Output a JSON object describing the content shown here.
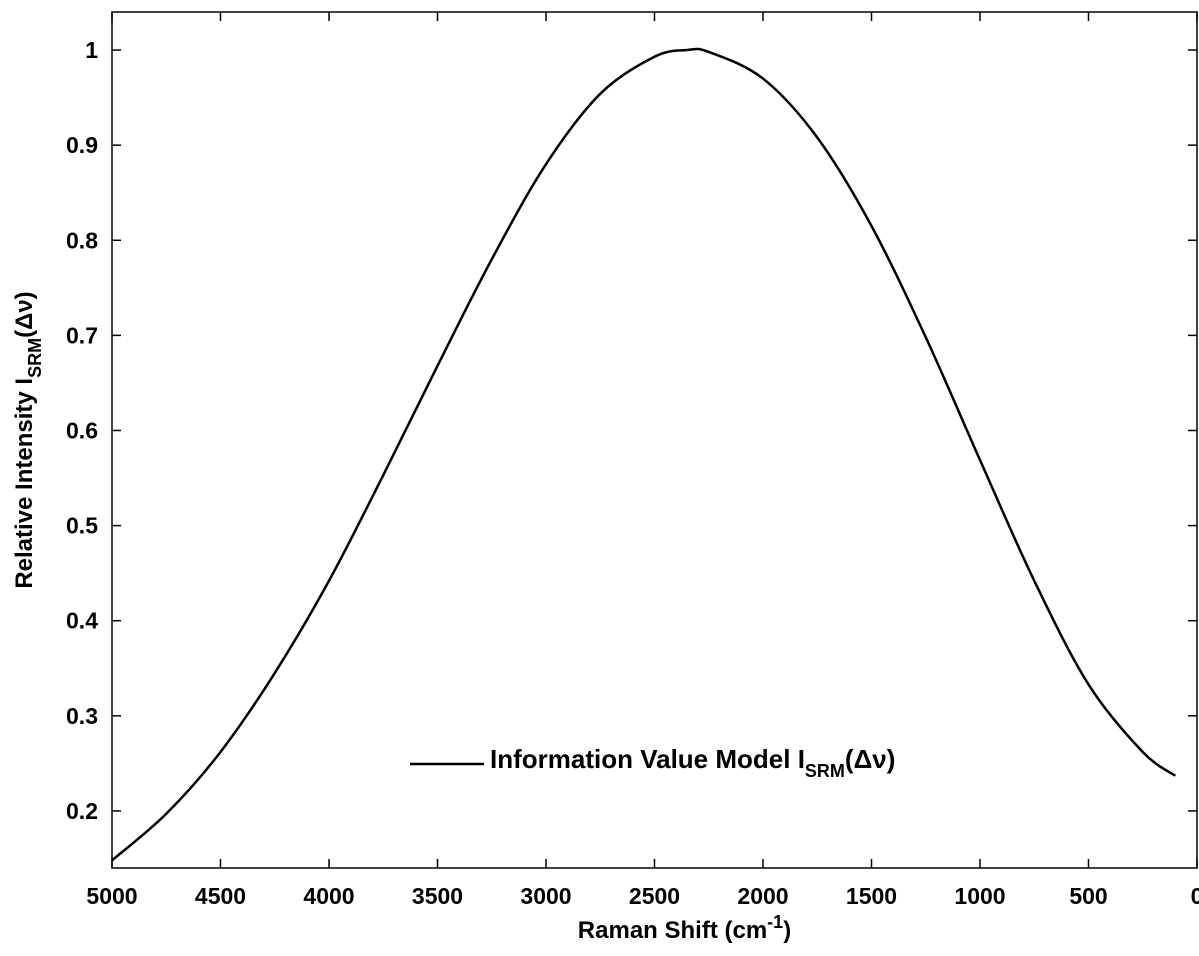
{
  "chart_data": {
    "type": "line",
    "xlabel": {
      "main": "Raman Shift (cm",
      "sup": "-1",
      "close": ")"
    },
    "ylabel": {
      "main": "Relative Intensity I",
      "sub": "SRM",
      "tail": "(Δν)"
    },
    "xlim": [
      5000,
      0
    ],
    "ylim": [
      0.14,
      1.04
    ],
    "x_reversed": true,
    "grid": false,
    "legend_position": "center-bottom",
    "x_ticks": [
      5000,
      4500,
      4000,
      3500,
      3000,
      2500,
      2000,
      1500,
      1000,
      500,
      0
    ],
    "x_tick_labels": [
      "5000",
      "4500",
      "4000",
      "3500",
      "3000",
      "2500",
      "2000",
      "1500",
      "1000",
      "500",
      "0"
    ],
    "y_ticks": [
      0.2,
      0.3,
      0.4,
      0.5,
      0.6,
      0.7,
      0.8,
      0.9,
      1.0
    ],
    "y_tick_labels": [
      "0.2",
      "0.3",
      "0.4",
      "0.5",
      "0.6",
      "0.7",
      "0.8",
      "0.9",
      "1"
    ],
    "series": [
      {
        "name": {
          "main": "Information Value Model I",
          "sub": "SRM",
          "tail": "(Δν)"
        },
        "color": "#000000",
        "x": [
          5000,
          4750,
          4500,
          4250,
          4000,
          3750,
          3500,
          3250,
          3000,
          2750,
          2500,
          2350,
          2250,
          2000,
          1750,
          1500,
          1250,
          1000,
          750,
          500,
          250,
          100
        ],
        "y": [
          0.148,
          0.197,
          0.262,
          0.345,
          0.442,
          0.553,
          0.668,
          0.78,
          0.88,
          0.954,
          0.993,
          1.0,
          0.998,
          0.97,
          0.908,
          0.815,
          0.698,
          0.569,
          0.442,
          0.333,
          0.262,
          0.237
        ]
      }
    ]
  }
}
